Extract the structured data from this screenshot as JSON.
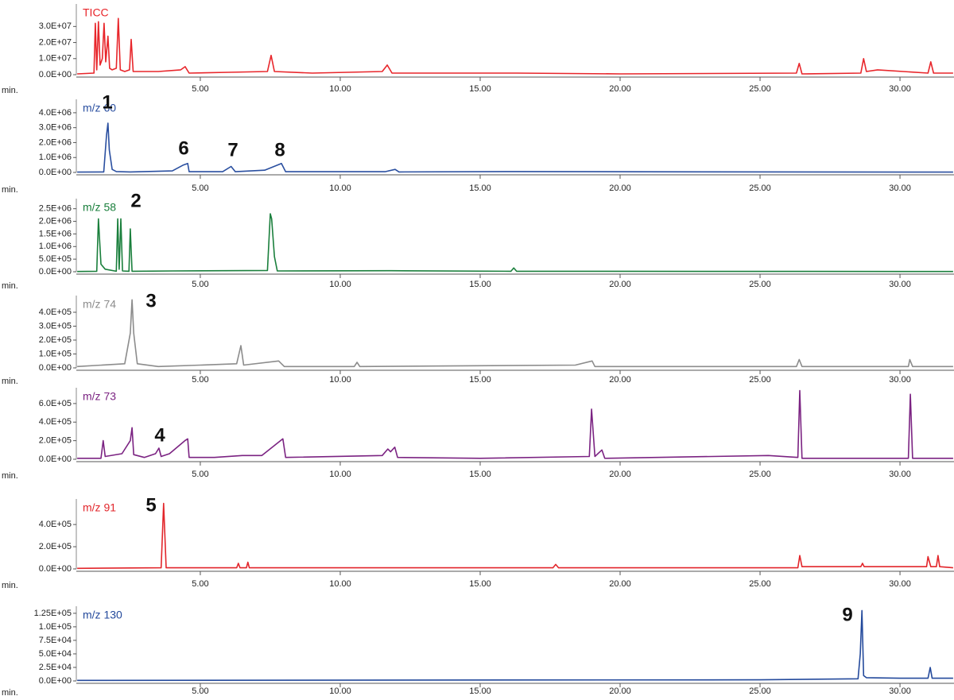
{
  "chart_data": [
    {
      "type": "line",
      "xlabel": "min.",
      "xlim": [
        0.57,
        31.93
      ],
      "ylim": [
        0,
        44000000
      ],
      "xticks": [
        {
          "value": 5,
          "label": "5.00"
        },
        {
          "value": 10,
          "label": "10.00"
        },
        {
          "value": 15,
          "label": "15.00"
        },
        {
          "value": 20,
          "label": "20.00"
        },
        {
          "value": 25,
          "label": "25.00"
        },
        {
          "value": 30,
          "label": "30.00"
        }
      ],
      "yticks": [
        {
          "value": 0,
          "label": "0.0E+00"
        },
        {
          "value": 10000000,
          "label": "1.0E+07"
        },
        {
          "value": 20000000,
          "label": "2.0E+07"
        },
        {
          "value": 30000000,
          "label": "3.0E+07"
        }
      ],
      "x": [
        0.6,
        1.2,
        1.25,
        1.3,
        1.36,
        1.42,
        1.5,
        1.56,
        1.62,
        1.7,
        1.76,
        1.85,
        2.0,
        2.07,
        2.14,
        2.3,
        2.47,
        2.53,
        2.6,
        3.5,
        4.3,
        4.46,
        4.6,
        6.0,
        7.4,
        7.53,
        7.65,
        9.0,
        11.5,
        11.68,
        11.85,
        14.0,
        16.3,
        20.0,
        26.3,
        26.4,
        26.5,
        28.6,
        28.7,
        28.8,
        29.2,
        31.0,
        31.1,
        31.2,
        31.9
      ],
      "series": [
        {
          "name": "TICC",
          "color": "#e8262b",
          "values": [
            500000,
            1000000,
            32000000,
            3000000,
            33000000,
            6000000,
            10000000,
            32000000,
            8000000,
            24000000,
            4000000,
            3000000,
            4000000,
            35000000,
            3000000,
            2000000,
            3000000,
            22000000,
            2000000,
            2000000,
            3000000,
            5000000,
            1000000,
            1500000,
            2000000,
            12000000,
            2000000,
            1000000,
            2000000,
            6000000,
            1000000,
            1000000,
            1000000,
            500000,
            1000000,
            7000000,
            500000,
            1000000,
            10000000,
            2000000,
            3000000,
            1000000,
            8000000,
            1000000,
            1000000
          ]
        }
      ],
      "annotations": []
    },
    {
      "type": "line",
      "xlabel": "min.",
      "xlim": [
        0.57,
        31.93
      ],
      "ylim": [
        0,
        4900000
      ],
      "xticks": [
        {
          "value": 5,
          "label": "5.00"
        },
        {
          "value": 10,
          "label": "10.00"
        },
        {
          "value": 15,
          "label": "15.00"
        },
        {
          "value": 20,
          "label": "20.00"
        },
        {
          "value": 25,
          "label": "25.00"
        },
        {
          "value": 30,
          "label": "30.00"
        }
      ],
      "yticks": [
        {
          "value": 0,
          "label": "0.0E+00"
        },
        {
          "value": 1000000,
          "label": "1.0E+06"
        },
        {
          "value": 2000000,
          "label": "2.0E+06"
        },
        {
          "value": 3000000,
          "label": "3.0E+06"
        },
        {
          "value": 4000000,
          "label": "4.0E+06"
        }
      ],
      "x": [
        0.6,
        1.55,
        1.65,
        1.7,
        1.75,
        1.85,
        2.0,
        2.5,
        4.0,
        4.4,
        4.55,
        4.6,
        5.8,
        6.1,
        6.25,
        7.3,
        7.9,
        8.05,
        11.6,
        11.96,
        12.1,
        16.3,
        20.9,
        31.9
      ],
      "series": [
        {
          "name": "m/z 60",
          "color": "#2a4fa0",
          "values": [
            20000,
            30000,
            2500000,
            3300000,
            1500000,
            200000,
            60000,
            30000,
            100000,
            500000,
            600000,
            50000,
            50000,
            400000,
            50000,
            150000,
            600000,
            50000,
            50000,
            200000,
            30000,
            60000,
            40000,
            20000
          ]
        }
      ],
      "annotations": [
        "1",
        "6",
        "7",
        "8"
      ]
    },
    {
      "type": "line",
      "xlabel": "min.",
      "xlim": [
        0.57,
        31.93
      ],
      "ylim": [
        0,
        2900000
      ],
      "xticks": [
        {
          "value": 5,
          "label": "5.00"
        },
        {
          "value": 10,
          "label": "10.00"
        },
        {
          "value": 15,
          "label": "15.00"
        },
        {
          "value": 20,
          "label": "20.00"
        },
        {
          "value": 25,
          "label": "25.00"
        },
        {
          "value": 30,
          "label": "30.00"
        }
      ],
      "yticks": [
        {
          "value": 0,
          "label": "0.0E+00"
        },
        {
          "value": 500000,
          "label": "5.0E+05"
        },
        {
          "value": 1000000,
          "label": "1.0E+06"
        },
        {
          "value": 1500000,
          "label": "1.5E+06"
        },
        {
          "value": 2000000,
          "label": "2.0E+06"
        },
        {
          "value": 2500000,
          "label": "2.5E+06"
        }
      ],
      "x": [
        0.6,
        1.3,
        1.36,
        1.45,
        1.6,
        2.0,
        2.05,
        2.1,
        2.16,
        2.22,
        2.45,
        2.5,
        2.56,
        4.0,
        7.4,
        7.5,
        7.55,
        7.65,
        7.75,
        11.8,
        16.1,
        16.2,
        16.3,
        31.9
      ],
      "series": [
        {
          "name": "m/z 58",
          "color": "#1a7f3c",
          "values": [
            10000,
            20000,
            2100000,
            300000,
            100000,
            20000,
            2100000,
            100000,
            2100000,
            30000,
            20000,
            1700000,
            20000,
            30000,
            50000,
            2300000,
            2100000,
            600000,
            30000,
            40000,
            20000,
            150000,
            20000,
            10000
          ]
        }
      ],
      "annotations": [
        "2"
      ]
    },
    {
      "type": "line",
      "xlabel": "min.",
      "xlim": [
        0.57,
        31.93
      ],
      "ylim": [
        0,
        520000
      ],
      "xticks": [
        {
          "value": 5,
          "label": "5.00"
        },
        {
          "value": 10,
          "label": "10.00"
        },
        {
          "value": 15,
          "label": "15.00"
        },
        {
          "value": 20,
          "label": "20.00"
        },
        {
          "value": 25,
          "label": "25.00"
        },
        {
          "value": 30,
          "label": "30.00"
        }
      ],
      "yticks": [
        {
          "value": 0,
          "label": "0.0E+00"
        },
        {
          "value": 100000,
          "label": "1.0E+05"
        },
        {
          "value": 200000,
          "label": "2.0E+05"
        },
        {
          "value": 300000,
          "label": "3.0E+05"
        },
        {
          "value": 400000,
          "label": "4.0E+05"
        }
      ],
      "x": [
        0.6,
        2.3,
        2.5,
        2.56,
        2.62,
        2.75,
        3.5,
        5.0,
        6.3,
        6.45,
        6.55,
        7.8,
        8.0,
        10.5,
        10.6,
        10.7,
        18.4,
        19.0,
        19.1,
        26.3,
        26.4,
        26.5,
        30.3,
        30.35,
        30.45,
        31.9
      ],
      "series": [
        {
          "name": "m/z 74",
          "color": "#8c8c8c",
          "values": [
            10000,
            30000,
            250000,
            490000,
            250000,
            30000,
            10000,
            20000,
            30000,
            160000,
            20000,
            50000,
            10000,
            10000,
            40000,
            10000,
            20000,
            50000,
            10000,
            10000,
            60000,
            10000,
            10000,
            60000,
            10000,
            10000
          ]
        }
      ],
      "annotations": [
        "3"
      ]
    },
    {
      "type": "line",
      "xlabel": "min.",
      "xlim": [
        0.57,
        31.93
      ],
      "ylim": [
        0,
        770000
      ],
      "xticks": [
        {
          "value": 5,
          "label": "5.00"
        },
        {
          "value": 10,
          "label": "10.00"
        },
        {
          "value": 15,
          "label": "15.00"
        },
        {
          "value": 20,
          "label": "20.00"
        },
        {
          "value": 25,
          "label": "25.00"
        },
        {
          "value": 30,
          "label": "30.00"
        }
      ],
      "yticks": [
        {
          "value": 0,
          "label": "0.0E+00"
        },
        {
          "value": 200000,
          "label": "2.0E+05"
        },
        {
          "value": 400000,
          "label": "4.0E+05"
        },
        {
          "value": 600000,
          "label": "6.0E+05"
        }
      ],
      "x": [
        0.6,
        1.45,
        1.53,
        1.6,
        2.2,
        2.5,
        2.56,
        2.62,
        3.0,
        3.4,
        3.52,
        3.6,
        3.9,
        4.45,
        4.55,
        4.6,
        5.5,
        6.5,
        7.2,
        7.95,
        8.05,
        11.5,
        11.7,
        11.8,
        11.95,
        12.05,
        15,
        18.9,
        18.98,
        19.1,
        19.35,
        19.45,
        25.3,
        26.35,
        26.42,
        26.5,
        30.3,
        30.37,
        30.45,
        31.9
      ],
      "series": [
        {
          "name": "m/z 73",
          "color": "#7b2382",
          "values": [
            10000,
            10000,
            200000,
            30000,
            60000,
            200000,
            340000,
            50000,
            20000,
            60000,
            120000,
            30000,
            60000,
            200000,
            220000,
            20000,
            20000,
            40000,
            40000,
            220000,
            20000,
            40000,
            110000,
            80000,
            130000,
            20000,
            10000,
            30000,
            540000,
            30000,
            100000,
            10000,
            40000,
            20000,
            740000,
            10000,
            10000,
            700000,
            10000,
            10000
          ]
        }
      ],
      "annotations": [
        "4"
      ]
    },
    {
      "type": "line",
      "xlabel": "min.",
      "xlim": [
        0.57,
        31.93
      ],
      "ylim": [
        0,
        630000
      ],
      "xticks": [
        {
          "value": 5,
          "label": "5.00"
        },
        {
          "value": 10,
          "label": "10.00"
        },
        {
          "value": 15,
          "label": "15.00"
        },
        {
          "value": 20,
          "label": "20.00"
        },
        {
          "value": 25,
          "label": "25.00"
        },
        {
          "value": 30,
          "label": "30.00"
        }
      ],
      "yticks": [
        {
          "value": 0,
          "label": "0.0E+00"
        },
        {
          "value": 200000,
          "label": "2.0E+05"
        },
        {
          "value": 400000,
          "label": "4.0E+05"
        }
      ],
      "x": [
        0.6,
        3.6,
        3.69,
        3.78,
        6.3,
        6.36,
        6.42,
        6.65,
        6.7,
        6.75,
        17.6,
        17.7,
        17.8,
        26.35,
        26.42,
        26.5,
        28.6,
        28.66,
        28.72,
        30.95,
        31.0,
        31.1,
        31.3,
        31.36,
        31.42,
        31.9
      ],
      "series": [
        {
          "name": "m/z 91",
          "color": "#e2262b",
          "values": [
            5000,
            10000,
            590000,
            10000,
            10000,
            50000,
            10000,
            10000,
            60000,
            10000,
            10000,
            40000,
            10000,
            10000,
            120000,
            20000,
            20000,
            50000,
            20000,
            20000,
            110000,
            20000,
            20000,
            120000,
            20000,
            10000
          ]
        }
      ],
      "annotations": [
        "5"
      ]
    },
    {
      "type": "line",
      "xlabel": "min.",
      "xlim": [
        0.57,
        31.93
      ],
      "ylim": [
        0,
        138000
      ],
      "xticks": [
        {
          "value": 5,
          "label": "5.00"
        },
        {
          "value": 10,
          "label": "10.00"
        },
        {
          "value": 15,
          "label": "15.00"
        },
        {
          "value": 20,
          "label": "20.00"
        },
        {
          "value": 25,
          "label": "25.00"
        },
        {
          "value": 30,
          "label": "30.00"
        }
      ],
      "yticks": [
        {
          "value": 0,
          "label": "0.0E+00"
        },
        {
          "value": 25000,
          "label": "2.5E+04"
        },
        {
          "value": 50000,
          "label": "5.0E+04"
        },
        {
          "value": 75000,
          "label": "7.5E+04"
        },
        {
          "value": 100000,
          "label": "1.0E+05"
        },
        {
          "value": 125000,
          "label": "1.25E+05"
        }
      ],
      "x": [
        0.6,
        25.0,
        28.5,
        28.58,
        28.64,
        28.7,
        28.8,
        30,
        31.0,
        31.08,
        31.15,
        31.9
      ],
      "series": [
        {
          "name": "m/z 130",
          "color": "#244a9c",
          "values": [
            1000,
            2000,
            4000,
            50000,
            130000,
            10000,
            6000,
            5000,
            5000,
            25000,
            5000,
            5000
          ]
        }
      ],
      "annotations": [
        "9"
      ]
    }
  ]
}
